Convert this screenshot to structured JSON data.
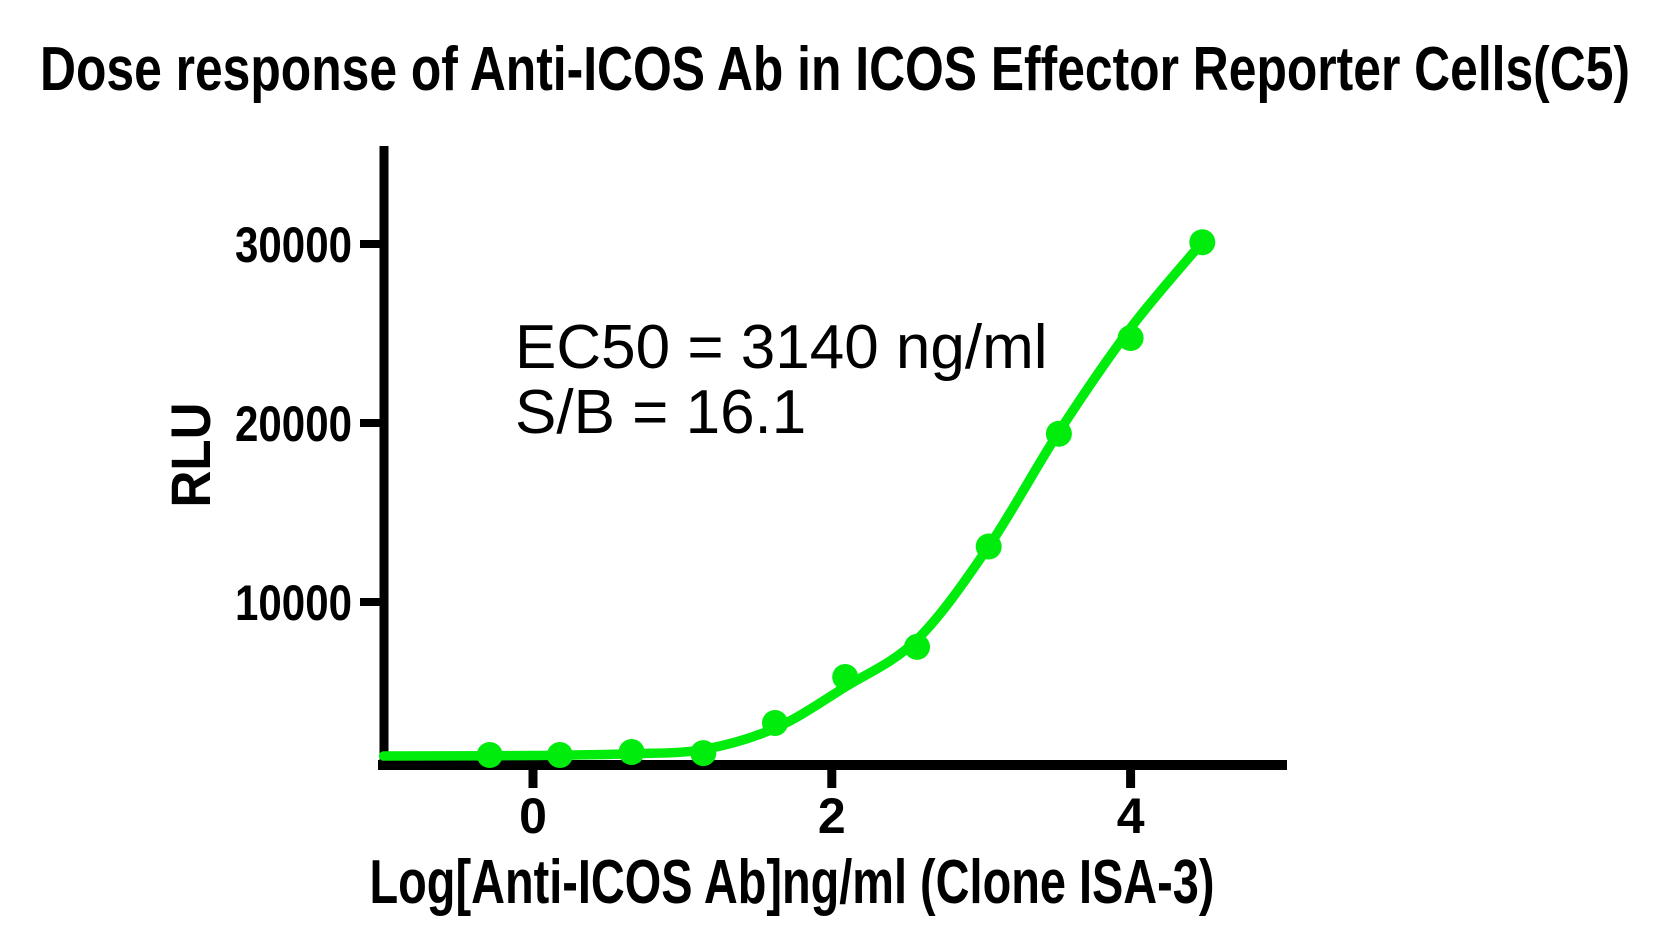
{
  "page": {
    "background": "#ffffff"
  },
  "chart_data": {
    "type": "scatter",
    "title": "Dose response of Anti-ICOS Ab in ICOS Effector Reporter Cells(C5)",
    "xlabel": "Log[Anti-ICOS Ab]ng/ml (Clone ISA-3)",
    "ylabel": "RLU",
    "annotation_lines": [
      "EC50 = 3140 ng/ml",
      "S/B = 16.1"
    ],
    "ec50_ng_ml": 3140,
    "signal_to_background": 16.1,
    "grid": false,
    "legend": "none",
    "xlim": [
      -1.04,
      5.05
    ],
    "ylim": [
      900,
      35500
    ],
    "x_ticks": {
      "values": [
        0,
        2,
        4
      ],
      "labels": [
        "0",
        "2",
        "4"
      ]
    },
    "y_ticks": {
      "values": [
        10000,
        20000,
        30000
      ],
      "labels": [
        "10000",
        "20000",
        "30000"
      ]
    },
    "axis_color": "#000000",
    "series": [
      {
        "name": "Anti-ICOS Ab (Clone ISA-3)",
        "color": "#00EC0C",
        "marker": "circle",
        "points": [
          {
            "x": -0.29,
            "y": 1450
          },
          {
            "x": 0.18,
            "y": 1450
          },
          {
            "x": 0.66,
            "y": 1620
          },
          {
            "x": 1.14,
            "y": 1560
          },
          {
            "x": 1.62,
            "y": 3240
          },
          {
            "x": 2.09,
            "y": 5810
          },
          {
            "x": 2.57,
            "y": 7490
          },
          {
            "x": 3.05,
            "y": 13100
          },
          {
            "x": 3.52,
            "y": 19400
          },
          {
            "x": 4.0,
            "y": 24750
          },
          {
            "x": 4.48,
            "y": 30100
          }
        ],
        "fit_curve": [
          {
            "x": -1.0,
            "y": 1395
          },
          {
            "x": -0.29,
            "y": 1410
          },
          {
            "x": 0.18,
            "y": 1440
          },
          {
            "x": 0.66,
            "y": 1520
          },
          {
            "x": 1.14,
            "y": 1760
          },
          {
            "x": 1.62,
            "y": 2950
          },
          {
            "x": 2.09,
            "y": 5250
          },
          {
            "x": 2.57,
            "y": 7900
          },
          {
            "x": 3.05,
            "y": 13100
          },
          {
            "x": 3.52,
            "y": 19500
          },
          {
            "x": 4.0,
            "y": 25300
          },
          {
            "x": 4.48,
            "y": 30100
          }
        ]
      }
    ]
  }
}
